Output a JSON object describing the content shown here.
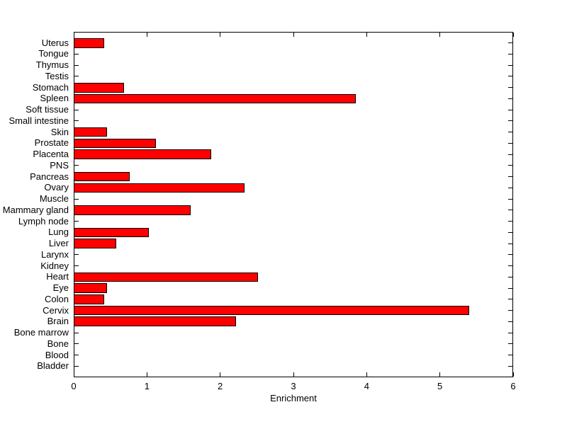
{
  "chart_data": {
    "type": "bar",
    "orientation": "horizontal",
    "title": "",
    "xlabel": "Enrichment",
    "ylabel": "",
    "category_order": "top-to-bottom",
    "categories": [
      "Uterus",
      "Tongue",
      "Thymus",
      "Testis",
      "Stomach",
      "Spleen",
      "Soft tissue",
      "Small intestine",
      "Skin",
      "Prostate",
      "Placenta",
      "PNS",
      "Pancreas",
      "Ovary",
      "Muscle",
      "Mammary gland",
      "Lymph node",
      "Lung",
      "Liver",
      "Larynx",
      "Kidney",
      "Heart",
      "Eye",
      "Colon",
      "Cervix",
      "Brain",
      "Bone marrow",
      "Bone",
      "Blood",
      "Bladder"
    ],
    "values": [
      0.42,
      0,
      0,
      0,
      0.69,
      3.85,
      0,
      0,
      0.45,
      1.12,
      1.88,
      0,
      0.76,
      2.33,
      0,
      1.6,
      0,
      1.03,
      0.58,
      0,
      0,
      2.52,
      0.45,
      0.42,
      5.4,
      2.22,
      0,
      0,
      0,
      0
    ],
    "xlim": [
      0,
      6
    ],
    "xticks": [
      "0",
      "1",
      "2",
      "3",
      "4",
      "5",
      "6"
    ],
    "grid": false,
    "legend": false,
    "box": true,
    "bar_color": "#FF0000",
    "bar_edge_color": "#000000",
    "axis_color": "#000000",
    "background_color": "#FFFFFF"
  }
}
